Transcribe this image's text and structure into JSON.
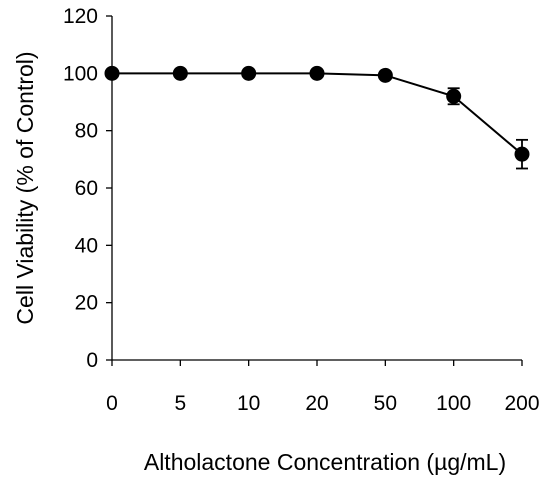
{
  "chart_data": {
    "type": "line",
    "title": "",
    "xlabel": "Altholactone Concentration (µg/mL)",
    "ylabel": "Cell Viability (% of Control)",
    "categories": [
      "0",
      "5",
      "10",
      "20",
      "50",
      "100",
      "200"
    ],
    "ylim": [
      0,
      120
    ],
    "yticks": [
      "0",
      "20",
      "40",
      "60",
      "80",
      "100",
      "120"
    ],
    "grid": false,
    "legend": "none",
    "series": [
      {
        "values": [
          100,
          100,
          100,
          100,
          99.3,
          92.0,
          71.8
        ],
        "error": [
          0,
          0,
          0,
          0,
          0.5,
          2.8,
          5.0
        ],
        "color": "#000000",
        "marker": "filled-circle"
      }
    ]
  }
}
